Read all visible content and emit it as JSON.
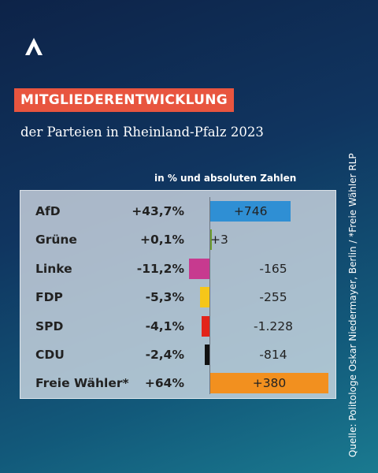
{
  "header": {
    "logo_icon": "caret-a-logo-icon",
    "headline": "MITGLIEDERENTWICKLUNG",
    "subtitle": "der Parteien in Rheinland-Pfalz 2023"
  },
  "colors": {
    "headline_bg": "#e8553f",
    "AfD": "#2f8fd4",
    "Grüne": "#6e9e2e",
    "Linke": "#c73a8f",
    "FDP": "#f6c619",
    "SPD": "#e2231a",
    "CDU": "#111111",
    "Freie Wähler*": "#f2901f"
  },
  "chart_data": {
    "type": "bar",
    "unit_label": "in % und absoluten Zahlen",
    "categories": [
      "AfD",
      "Grüne",
      "Linke",
      "FDP",
      "SPD",
      "CDU",
      "Freie Wähler*"
    ],
    "percent_labels": [
      "+43,7%",
      "+0,1%",
      "-11,2%",
      "-5,3%",
      "-4,1%",
      "-2,4%",
      "+64%"
    ],
    "absolute_labels": [
      "+746",
      "+3",
      "-165",
      "-255",
      "-1.228",
      "-814",
      "+380"
    ],
    "values": [
      43.7,
      0.1,
      -11.2,
      -5.3,
      -4.1,
      -2.4,
      64
    ],
    "absolute_values": [
      746,
      3,
      -165,
      -255,
      -1228,
      -814,
      380
    ],
    "colors": [
      "#2f8fd4",
      "#6e9e2e",
      "#c73a8f",
      "#f6c619",
      "#e2231a",
      "#111111",
      "#f2901f"
    ]
  },
  "footer": {
    "source": "Quelle: Politologe Oskar Niedermayer, Berlin / *Freie Wähler RLP"
  }
}
